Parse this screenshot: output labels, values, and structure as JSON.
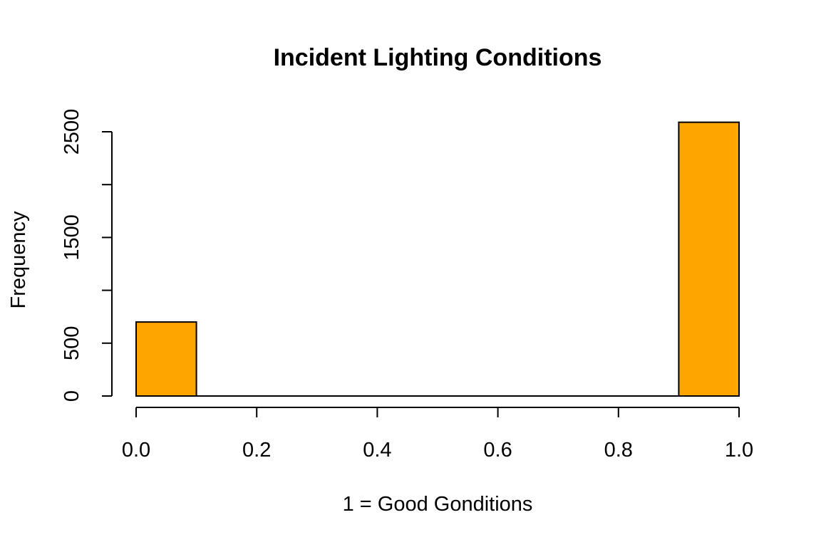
{
  "chart_data": {
    "type": "bar",
    "title": "Incident Lighting Conditions",
    "xlabel": "1 = Good Gonditions",
    "ylabel": "Frequency",
    "x_ticks": [
      "0.0",
      "0.2",
      "0.4",
      "0.6",
      "0.8",
      "1.0"
    ],
    "x_tick_values": [
      0.0,
      0.2,
      0.4,
      0.6,
      0.8,
      1.0
    ],
    "y_ticks_labeled": [
      "0",
      "500",
      "1500",
      "2500"
    ],
    "y_tick_values": [
      0,
      500,
      1000,
      1500,
      2000,
      2500
    ],
    "y_tick_labels": [
      "0",
      "500",
      "",
      "1500",
      "",
      "2500"
    ],
    "xlim": [
      0.0,
      1.0
    ],
    "ylim": [
      0,
      2500
    ],
    "bins": [
      {
        "range": [
          0.0,
          0.1
        ],
        "value": 700
      },
      {
        "range": [
          0.1,
          0.2
        ],
        "value": 0
      },
      {
        "range": [
          0.2,
          0.3
        ],
        "value": 0
      },
      {
        "range": [
          0.3,
          0.4
        ],
        "value": 0
      },
      {
        "range": [
          0.4,
          0.5
        ],
        "value": 0
      },
      {
        "range": [
          0.5,
          0.6
        ],
        "value": 0
      },
      {
        "range": [
          0.6,
          0.7
        ],
        "value": 0
      },
      {
        "range": [
          0.7,
          0.8
        ],
        "value": 0
      },
      {
        "range": [
          0.8,
          0.9
        ],
        "value": 0
      },
      {
        "range": [
          0.9,
          1.0
        ],
        "value": 2590
      }
    ],
    "bar_color": "#FFA500",
    "grid": false,
    "legend": "none"
  }
}
